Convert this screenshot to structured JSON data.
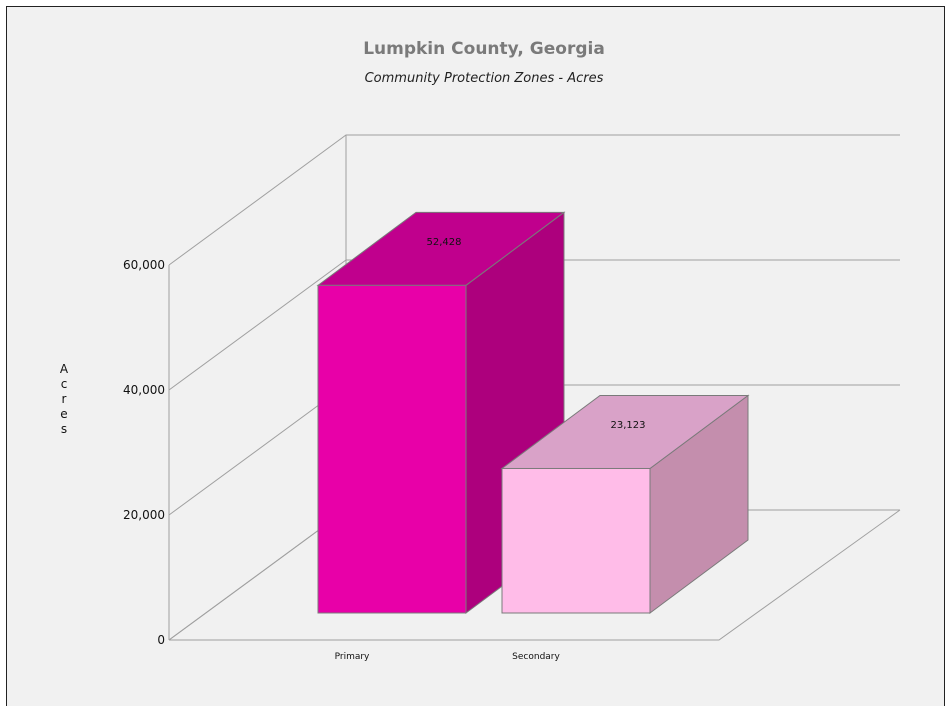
{
  "chart_data": {
    "type": "bar",
    "title": "Lumpkin County, Georgia",
    "subtitle": "Community Protection Zones - Acres",
    "xlabel": "",
    "ylabel": "Acres",
    "categories": [
      "Primary",
      "Secondary"
    ],
    "values": [
      52428,
      23123
    ],
    "data_labels": [
      "52,428",
      "23,123"
    ],
    "ylim": [
      0,
      60000
    ],
    "yticks": [
      0,
      20000,
      40000,
      60000
    ],
    "ytick_labels": [
      "0",
      "20,000",
      "40,000",
      "60,000"
    ],
    "grid": true,
    "three_d": true,
    "bar_colors": [
      {
        "front": "#e800a8",
        "top": "#c0008d",
        "side": "#ad007d"
      },
      {
        "front": "#ffbce8",
        "top": "#d9a2c8",
        "side": "#c48ead"
      }
    ],
    "background": "#f1f1f1"
  }
}
